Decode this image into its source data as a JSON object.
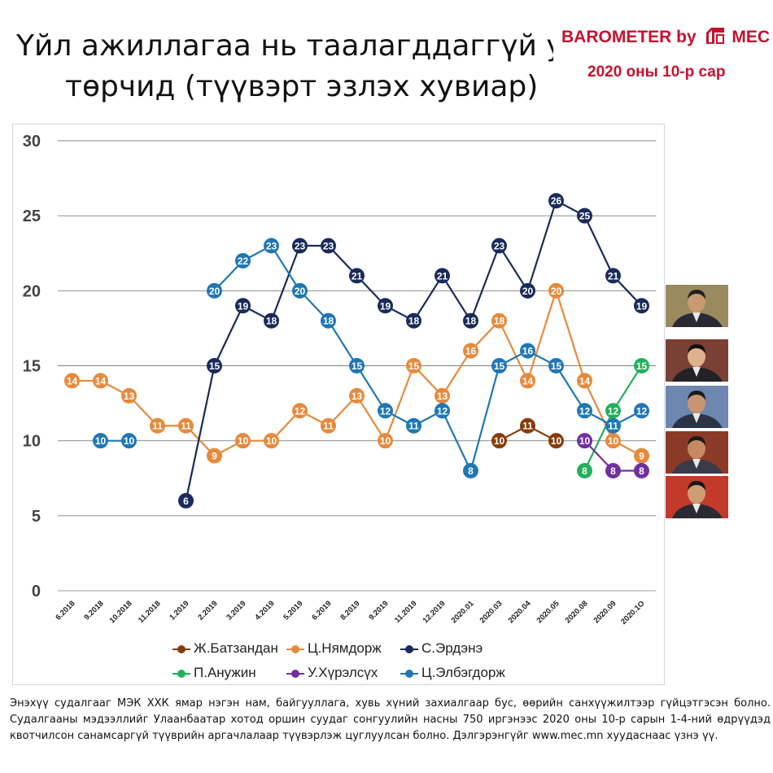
{
  "header": {
    "title_line1": "Үйл ажиллагаа нь таалагддаггүй улс",
    "title_line2": "төрчид (түүвэрт эзлэх хувиар)",
    "brand": "BAROMETER by",
    "brand_mark": "MEC",
    "period": "2020 оны 10-р сар"
  },
  "chart_data": {
    "type": "line",
    "title": "Үйл ажиллагаа нь таалагддаггүй улс төрчид (түүвэрт эзлэх хувиар)",
    "xlabel": "",
    "ylabel": "",
    "ylim": [
      0,
      30
    ],
    "yticks": [
      0,
      5,
      10,
      15,
      20,
      25,
      30
    ],
    "grid": true,
    "legend_position": "bottom",
    "categories": [
      "6.2018",
      "9.2018",
      "10.2018",
      "11.2018",
      "1.2019",
      "2.2019",
      "3.2019",
      "4.2019",
      "5.2019",
      "6.2019",
      "8.2019",
      "9.2019",
      "11.2019",
      "12.2019",
      "2020.01",
      "2020.03",
      "2020.04",
      "2020.05",
      "2020.08",
      "2020.09",
      "2020.1O"
    ],
    "series": [
      {
        "name": "Ж.Батзандан",
        "color": "#843c0c",
        "values": [
          null,
          null,
          null,
          null,
          null,
          null,
          null,
          null,
          null,
          null,
          null,
          null,
          null,
          null,
          null,
          10,
          11,
          10,
          null,
          null,
          null
        ]
      },
      {
        "name": "Ц.Нямдорж",
        "color": "#e58a3c",
        "values": [
          14,
          14,
          13,
          11,
          11,
          9,
          10,
          10,
          12,
          11,
          13,
          10,
          15,
          13,
          16,
          18,
          14,
          20,
          14,
          10,
          9
        ]
      },
      {
        "name": "С.Эрдэнэ",
        "color": "#1a2b5a",
        "values": [
          null,
          null,
          null,
          null,
          6,
          15,
          19,
          18,
          23,
          23,
          21,
          19,
          18,
          21,
          18,
          23,
          20,
          26,
          25,
          21,
          19
        ]
      },
      {
        "name": "П.Анужин",
        "color": "#22b05a",
        "values": [
          null,
          null,
          null,
          null,
          null,
          null,
          null,
          null,
          null,
          null,
          null,
          null,
          null,
          null,
          null,
          null,
          null,
          null,
          8,
          12,
          15
        ]
      },
      {
        "name": "У.Хүрэлсүх",
        "color": "#7030a0",
        "values": [
          null,
          null,
          null,
          null,
          null,
          null,
          null,
          null,
          null,
          null,
          null,
          null,
          null,
          null,
          null,
          null,
          null,
          null,
          10,
          8,
          8
        ]
      },
      {
        "name": "Ц.Элбэгдорж",
        "color": "#1f77b4",
        "values": [
          null,
          10,
          10,
          null,
          null,
          20,
          22,
          23,
          20,
          18,
          15,
          12,
          11,
          12,
          8,
          15,
          16,
          15,
          12,
          11,
          12
        ]
      }
    ]
  },
  "footnote": "Энэхүү судалгааг МЭК ХХК ямар нэгэн нам, байгууллага, хувь хүний захиалгаар бус, өөрийн санхүүжилтээр гүйцэтгэсэн болно. Судалгааны мэдээллийг Улаанбаатар хотод оршин суудаг сонгуулийн насны 750 иргэнээс 2020 оны 10-р сарын 1-4-ний өдрүүдэд квотчилсон санамсаргүй түүврийн аргачлалаар түүвэрлэж цуглуулсан болно. Дэлгэрэнгүйг www.mec.mn хуудаснаас үзнэ үү.",
  "photos": [
    {
      "icon": "portrait-photo-icon",
      "bg": "#9a8a60",
      "face": "#c99a72",
      "suit": "#2a2a35",
      "hair": "#202020"
    },
    {
      "icon": "portrait-photo-icon",
      "bg": "#7a4035",
      "face": "#e0b08e",
      "suit": "#222228",
      "hair": "#111111"
    },
    {
      "icon": "portrait-photo-icon",
      "bg": "#6d87b0",
      "face": "#c99570",
      "suit": "#2c3344",
      "hair": "#1c1c1c"
    },
    {
      "icon": "portrait-photo-icon",
      "bg": "#8c3a28",
      "face": "#c58a62",
      "suit": "#3a3a48",
      "hair": "#1a1a1a"
    },
    {
      "icon": "portrait-photo-icon",
      "bg": "#c23a2a",
      "face": "#cf9c76",
      "suit": "#2a2a33",
      "hair": "#151515"
    }
  ]
}
